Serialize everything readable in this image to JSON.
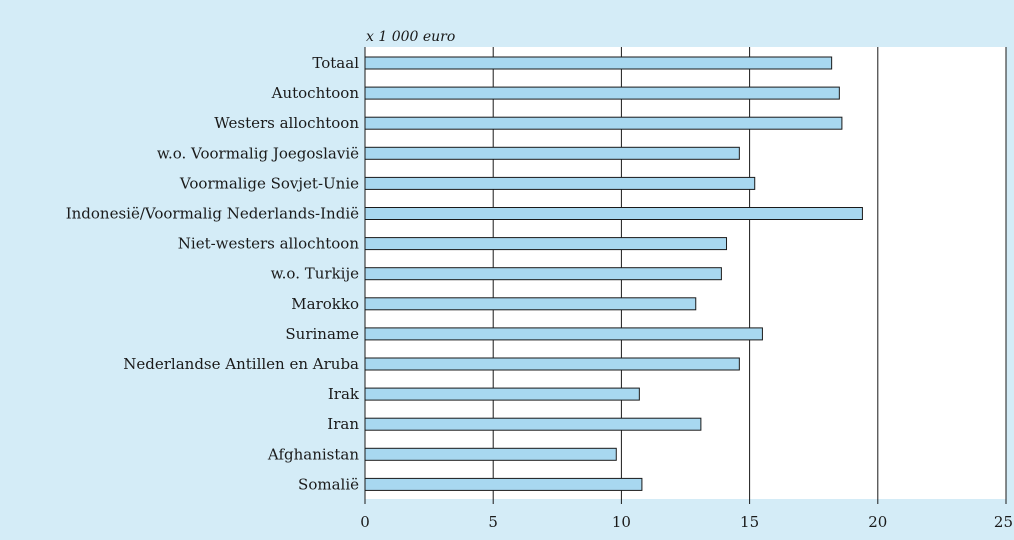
{
  "chart_data": {
    "type": "bar",
    "orientation": "horizontal",
    "unit_label": "x 1 000 euro",
    "categories": [
      "Totaal",
      "Autochtoon",
      "Westers allochtoon",
      "w.o. Voormalig Joegoslavië",
      "Voormalige Sovjet-Unie",
      "Indonesië/Voormalig Nederlands-Indië",
      "Niet-westers allochtoon",
      "w.o. Turkije",
      "Marokko",
      "Suriname",
      "Nederlandse Antillen en Aruba",
      "Irak",
      "Iran",
      "Afghanistan",
      "Somalië"
    ],
    "values": [
      18.2,
      18.5,
      18.6,
      14.6,
      15.2,
      19.4,
      14.1,
      13.9,
      12.9,
      15.5,
      14.6,
      10.7,
      13.1,
      9.8,
      10.8
    ],
    "xlim": [
      0,
      25
    ],
    "xticks": [
      0,
      5,
      10,
      15,
      20,
      25
    ],
    "tick_labels": [
      "0",
      "5",
      "10",
      "15",
      "20",
      "25"
    ],
    "grid": "vertical",
    "colors": {
      "background": "#d4ecf7",
      "plot_area": "#ffffff",
      "bar_fill": "#a8d8f0",
      "bar_stroke": "#1a1a1a",
      "gridline": "#1a1a1a",
      "text": "#1a1a1a"
    }
  }
}
